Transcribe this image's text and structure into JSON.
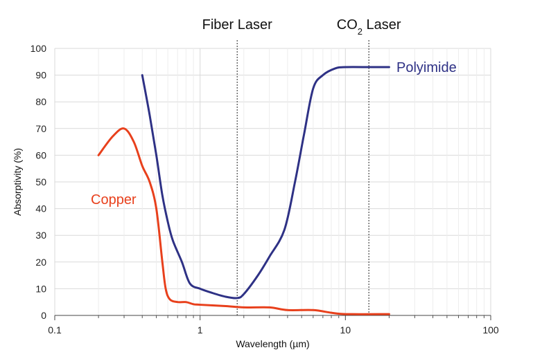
{
  "chart_data": {
    "type": "line",
    "xlabel": "Wavelength (µm)",
    "ylabel": "Absorptivity (%)",
    "x_scale": "log",
    "xlim": [
      0.1,
      100
    ],
    "ylim": [
      0,
      100
    ],
    "x_ticks": [
      0.1,
      1,
      10,
      100
    ],
    "x_tick_labels": [
      "0.1",
      "1",
      "10",
      "100"
    ],
    "y_ticks": [
      0,
      10,
      20,
      30,
      40,
      50,
      60,
      70,
      80,
      90,
      100
    ],
    "y_tick_labels": [
      "0",
      "10",
      "20",
      "30",
      "40",
      "50",
      "60",
      "70",
      "80",
      "90",
      "100"
    ],
    "grid": true,
    "markers": [
      {
        "label": "Fiber Laser",
        "label_main": "Fiber Laser",
        "label_sub": "",
        "label_tail": "",
        "x": 1.8
      },
      {
        "label": "CO2 Laser",
        "label_main": "CO",
        "label_sub": "2",
        "label_tail": " Laser",
        "x": 14.5
      }
    ],
    "series": [
      {
        "name": "Polyimide",
        "color": "#2e3185",
        "x": [
          0.4,
          0.45,
          0.5,
          0.55,
          0.6,
          0.65,
          0.75,
          0.85,
          1.0,
          1.2,
          1.5,
          1.8,
          2.0,
          2.5,
          3.0,
          3.8,
          4.5,
          5.2,
          6.0,
          7.0,
          8.5,
          10,
          15,
          20
        ],
        "y": [
          90,
          75,
          60,
          45,
          35,
          28,
          20,
          12,
          10,
          8.5,
          7,
          6.5,
          8,
          15,
          22,
          32,
          50,
          68,
          85,
          90,
          92.5,
          93,
          93,
          93
        ]
      },
      {
        "name": "Copper",
        "color": "#e8401c",
        "x": [
          0.2,
          0.25,
          0.3,
          0.35,
          0.4,
          0.45,
          0.5,
          0.55,
          0.58,
          0.62,
          0.7,
          0.8,
          0.9,
          1.0,
          1.5,
          2.0,
          3.0,
          4.0,
          6.0,
          8.0,
          10,
          20
        ],
        "y": [
          60,
          67,
          70,
          65,
          56,
          50,
          40,
          20,
          10,
          6,
          5,
          5,
          4.2,
          4,
          3.5,
          3,
          3,
          2,
          2,
          1,
          0.5,
          0.5
        ]
      }
    ]
  }
}
